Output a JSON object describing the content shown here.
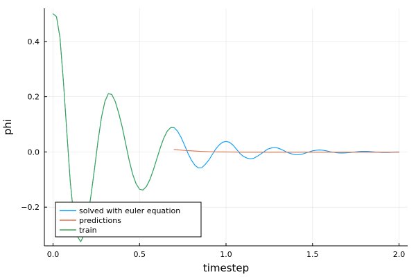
{
  "chart_data": {
    "type": "line",
    "title": "",
    "xlabel": "timestep",
    "ylabel": "phi",
    "xlim": [
      -0.05,
      2.05
    ],
    "ylim": [
      -0.34,
      0.52
    ],
    "x_ticks": [
      0.0,
      0.5,
      1.0,
      1.5,
      2.0
    ],
    "x_tick_labels": [
      "0.0",
      "0.5",
      "1.0",
      "1.5",
      "2.0"
    ],
    "y_ticks": [
      -0.2,
      0.0,
      0.2,
      0.4
    ],
    "y_tick_labels": [
      "−0.2",
      "0.0",
      "0.2",
      "0.4"
    ],
    "grid": true,
    "legend_position": "bottom-left",
    "series": [
      {
        "name": "solved with euler equation",
        "color": "#009AFA",
        "x": [
          0.0,
          0.02,
          0.04,
          0.06,
          0.08,
          0.1,
          0.12,
          0.14,
          0.16,
          0.18,
          0.2,
          0.22,
          0.24,
          0.26,
          0.28,
          0.3,
          0.32,
          0.34,
          0.36,
          0.38,
          0.4,
          0.42,
          0.44,
          0.46,
          0.48,
          0.5,
          0.52,
          0.54,
          0.56,
          0.58,
          0.6,
          0.62,
          0.64,
          0.66,
          0.68,
          0.7,
          0.72,
          0.74,
          0.76,
          0.78,
          0.8,
          0.82,
          0.84,
          0.86,
          0.88,
          0.9,
          0.92,
          0.94,
          0.96,
          0.98,
          1.0,
          1.02,
          1.04,
          1.06,
          1.08,
          1.1,
          1.12,
          1.14,
          1.16,
          1.18,
          1.2,
          1.22,
          1.24,
          1.26,
          1.28,
          1.3,
          1.32,
          1.34,
          1.36,
          1.38,
          1.4,
          1.42,
          1.44,
          1.46,
          1.48,
          1.5,
          1.52,
          1.54,
          1.56,
          1.58,
          1.6,
          1.62,
          1.64,
          1.66,
          1.68,
          1.7,
          1.72,
          1.74,
          1.76,
          1.78,
          1.8,
          1.82,
          1.84,
          1.86,
          1.88,
          1.9,
          1.92,
          1.94,
          1.96,
          1.98,
          2.0
        ],
        "y": [
          0.5,
          0.49,
          0.415,
          0.255,
          0.07,
          -0.11,
          -0.235,
          -0.305,
          -0.325,
          -0.3,
          -0.24,
          -0.155,
          -0.06,
          0.04,
          0.125,
          0.183,
          0.211,
          0.208,
          0.182,
          0.14,
          0.09,
          0.03,
          -0.03,
          -0.08,
          -0.115,
          -0.135,
          -0.138,
          -0.125,
          -0.1,
          -0.065,
          -0.025,
          0.015,
          0.05,
          0.075,
          0.088,
          0.088,
          0.075,
          0.053,
          0.025,
          -0.005,
          -0.03,
          -0.048,
          -0.058,
          -0.057,
          -0.045,
          -0.03,
          -0.01,
          0.01,
          0.025,
          0.035,
          0.038,
          0.035,
          0.025,
          0.01,
          -0.005,
          -0.016,
          -0.022,
          -0.025,
          -0.023,
          -0.016,
          -0.008,
          0.001,
          0.01,
          0.014,
          0.016,
          0.014,
          0.009,
          0.003,
          -0.003,
          -0.007,
          -0.01,
          -0.01,
          -0.008,
          -0.004,
          0.0,
          0.004,
          0.006,
          0.007,
          0.006,
          0.004,
          0.001,
          -0.001,
          -0.003,
          -0.004,
          -0.004,
          -0.003,
          -0.002,
          -0.0005,
          0.001,
          0.002,
          0.002,
          0.002,
          0.001,
          0.0,
          -0.001,
          -0.002,
          -0.002,
          -0.002,
          -0.001,
          0.0,
          0.0
        ]
      },
      {
        "name": "predictions",
        "color": "#E36F47",
        "x": [
          0.7,
          0.75,
          0.8,
          0.85,
          0.9,
          0.95,
          1.0,
          1.1,
          1.2,
          1.3,
          1.4,
          1.5,
          1.6,
          1.7,
          1.8,
          1.9,
          2.0
        ],
        "y": [
          0.009,
          0.006,
          0.004,
          0.002,
          0.001,
          0.0,
          0.0,
          -0.001,
          -0.001,
          -0.001,
          -0.001,
          -0.001,
          -0.001,
          -0.001,
          -0.001,
          -0.001,
          -0.001
        ]
      },
      {
        "name": "train",
        "color": "#3EA44E",
        "x": [
          0.0,
          0.02,
          0.04,
          0.06,
          0.08,
          0.1,
          0.12,
          0.14,
          0.16,
          0.18,
          0.2,
          0.22,
          0.24,
          0.26,
          0.28,
          0.3,
          0.32,
          0.34,
          0.36,
          0.38,
          0.4,
          0.42,
          0.44,
          0.46,
          0.48,
          0.5,
          0.52,
          0.54,
          0.56,
          0.58,
          0.6,
          0.62,
          0.64,
          0.66,
          0.68,
          0.7
        ],
        "y": [
          0.5,
          0.49,
          0.415,
          0.255,
          0.07,
          -0.11,
          -0.235,
          -0.305,
          -0.325,
          -0.3,
          -0.24,
          -0.155,
          -0.06,
          0.04,
          0.125,
          0.183,
          0.211,
          0.208,
          0.182,
          0.14,
          0.09,
          0.03,
          -0.03,
          -0.08,
          -0.115,
          -0.135,
          -0.138,
          -0.125,
          -0.1,
          -0.065,
          -0.025,
          0.015,
          0.05,
          0.075,
          0.088,
          0.088
        ]
      }
    ]
  }
}
